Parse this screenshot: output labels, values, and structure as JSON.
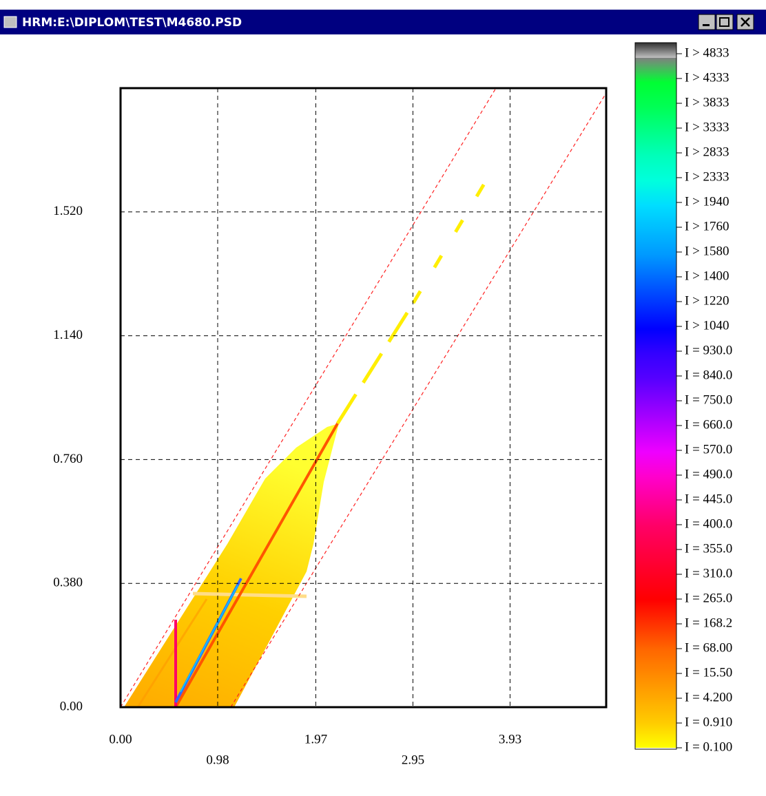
{
  "window": {
    "title": "HRM:E:\\DIPLOM\\TEST\\M4680.PSD"
  },
  "chart_data": {
    "type": "heatmap",
    "xlim": [
      0,
      4.9
    ],
    "ylim": [
      0,
      1.9
    ],
    "xticks": [
      {
        "value": 0,
        "label": "0.00"
      },
      {
        "value": 0.98,
        "label": "0.98"
      },
      {
        "value": 1.97,
        "label": "1.97"
      },
      {
        "value": 2.95,
        "label": "2.95"
      },
      {
        "value": 3.93,
        "label": "3.93"
      }
    ],
    "yticks": [
      {
        "value": 0,
        "label": "0.00"
      },
      {
        "value": 0.38,
        "label": "0.380"
      },
      {
        "value": 0.76,
        "label": "0.760"
      },
      {
        "value": 1.14,
        "label": "1.140"
      },
      {
        "value": 1.52,
        "label": "1.520"
      }
    ],
    "grid": true,
    "colorbar": [
      {
        "label": "I > 4833",
        "color": "#808080"
      },
      {
        "label": "I > 4333",
        "color": "#00ff33"
      },
      {
        "label": "I > 3833",
        "color": "#00ff55"
      },
      {
        "label": "I > 3333",
        "color": "#00ff88"
      },
      {
        "label": "I > 2833",
        "color": "#00ffbb"
      },
      {
        "label": "I > 2333",
        "color": "#00ffdd"
      },
      {
        "label": "I > 1940",
        "color": "#00ddff"
      },
      {
        "label": "I > 1760",
        "color": "#00bbff"
      },
      {
        "label": "I > 1580",
        "color": "#0099ff"
      },
      {
        "label": "I > 1400",
        "color": "#0066ff"
      },
      {
        "label": "I > 1220",
        "color": "#0033ff"
      },
      {
        "label": "I > 1040",
        "color": "#0000ff"
      },
      {
        "label": "I = 930.0",
        "color": "#3300ff"
      },
      {
        "label": "I = 840.0",
        "color": "#5500ff"
      },
      {
        "label": "I = 750.0",
        "color": "#8800ff"
      },
      {
        "label": "I = 660.0",
        "color": "#bb00ff"
      },
      {
        "label": "I = 570.0",
        "color": "#ee00ff"
      },
      {
        "label": "I = 490.0",
        "color": "#ff00cc"
      },
      {
        "label": "I = 445.0",
        "color": "#ff0099"
      },
      {
        "label": "I = 400.0",
        "color": "#ff0066"
      },
      {
        "label": "I = 355.0",
        "color": "#ff0044"
      },
      {
        "label": "I = 310.0",
        "color": "#ff0022"
      },
      {
        "label": "I = 265.0",
        "color": "#ff0000"
      },
      {
        "label": "I = 168.2",
        "color": "#ff3300"
      },
      {
        "label": "I = 68.00",
        "color": "#ff6600"
      },
      {
        "label": "I = 15.50",
        "color": "#ff8800"
      },
      {
        "label": "I = 4.200",
        "color": "#ffaa00"
      },
      {
        "label": "I = 0.910",
        "color": "#ffcc00"
      },
      {
        "label": "I = 0.100",
        "color": "#ffff00"
      }
    ]
  }
}
